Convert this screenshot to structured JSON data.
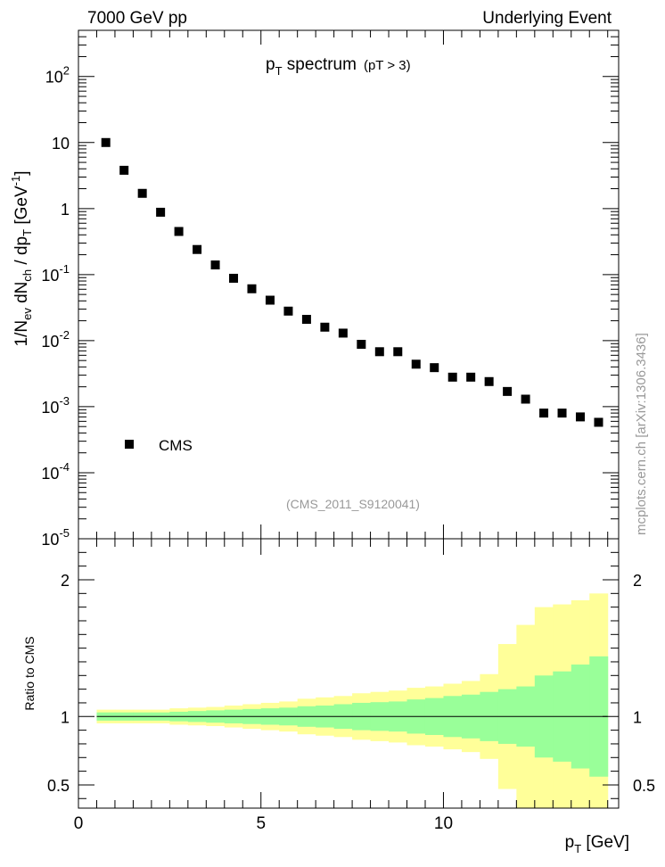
{
  "header": {
    "left": "7000 GeV pp",
    "right": "Underlying Event"
  },
  "side_label": "mcplots.cern.ch [arXiv:1306.3436]",
  "colors": {
    "band_outer": "#ffff99",
    "band_inner": "#99ff99",
    "marker": "#000000",
    "watermark": "#999999"
  },
  "chart_data": [
    {
      "type": "scatter",
      "title_main": "p",
      "title_sub": "T",
      "title_rest": " spectrum",
      "title_cut": "(pT > 3)",
      "ylabel": {
        "a": "1/N",
        "a_sub": "ev",
        "b": " dN",
        "b_sub": "ch",
        "c": " / dp",
        "c_sub": "T",
        "d": " [GeV",
        "d_sup": "-1",
        "e": "]"
      },
      "yscale": "log",
      "ylim": [
        1e-05,
        500
      ],
      "xlim": [
        0,
        14.8
      ],
      "y_ticks": [
        {
          "v": 100,
          "base": "10",
          "exp": "2"
        },
        {
          "v": 10,
          "base": "10",
          "exp": ""
        },
        {
          "v": 1,
          "base": "1",
          "exp": ""
        },
        {
          "v": 0.1,
          "base": "10",
          "exp": "-1"
        },
        {
          "v": 0.01,
          "base": "10",
          "exp": "-2"
        },
        {
          "v": 0.001,
          "base": "10",
          "exp": "-3"
        },
        {
          "v": 0.0001,
          "base": "10",
          "exp": "-4"
        },
        {
          "v": 1e-05,
          "base": "10",
          "exp": "-5"
        }
      ],
      "legend": "CMS",
      "watermark": "(CMS_2011_S9120041)",
      "series": [
        {
          "name": "CMS",
          "x": [
            0.75,
            1.25,
            1.75,
            2.25,
            2.75,
            3.25,
            3.75,
            4.25,
            4.75,
            5.25,
            5.75,
            6.25,
            6.75,
            7.25,
            7.75,
            8.25,
            8.75,
            9.25,
            9.75,
            10.25,
            10.75,
            11.25,
            11.75,
            12.25,
            12.75,
            13.25,
            13.75,
            14.25
          ],
          "y": [
            10,
            3.8,
            1.7,
            0.88,
            0.45,
            0.24,
            0.14,
            0.088,
            0.061,
            0.041,
            0.028,
            0.021,
            0.016,
            0.013,
            0.0088,
            0.0068,
            0.0068,
            0.0044,
            0.0039,
            0.0028,
            0.0028,
            0.0024,
            0.0017,
            0.0013,
            0.0008,
            0.0008,
            0.0007,
            0.00058
          ]
        }
      ]
    },
    {
      "type": "area",
      "ylabel": "Ratio to CMS",
      "xlabel": "p",
      "xlabel_sub": "T",
      "xlabel_unit": " [GeV]",
      "xlim": [
        0,
        14.8
      ],
      "ylim": [
        0.33,
        2.3
      ],
      "x_ticks": [
        {
          "v": 0,
          "label": "0"
        },
        {
          "v": 5,
          "label": "5"
        },
        {
          "v": 10,
          "label": "10"
        }
      ],
      "y_ticks": [
        {
          "v": 0.5,
          "label": "0.5"
        },
        {
          "v": 1,
          "label": "1"
        },
        {
          "v": 2,
          "label": "2"
        }
      ],
      "bins": [
        {
          "lo": 0.5,
          "hi": 1.0,
          "out_lo": 0.95,
          "out_hi": 1.05,
          "in_lo": 0.97,
          "in_hi": 1.03
        },
        {
          "lo": 1.0,
          "hi": 1.5,
          "out_lo": 0.95,
          "out_hi": 1.05,
          "in_lo": 0.97,
          "in_hi": 1.03
        },
        {
          "lo": 1.5,
          "hi": 2.0,
          "out_lo": 0.95,
          "out_hi": 1.05,
          "in_lo": 0.97,
          "in_hi": 1.03
        },
        {
          "lo": 2.0,
          "hi": 2.5,
          "out_lo": 0.95,
          "out_hi": 1.05,
          "in_lo": 0.97,
          "in_hi": 1.03
        },
        {
          "lo": 2.5,
          "hi": 3.0,
          "out_lo": 0.94,
          "out_hi": 1.06,
          "in_lo": 0.965,
          "in_hi": 1.035
        },
        {
          "lo": 3.0,
          "hi": 3.5,
          "out_lo": 0.935,
          "out_hi": 1.065,
          "in_lo": 0.96,
          "in_hi": 1.04
        },
        {
          "lo": 3.5,
          "hi": 4.0,
          "out_lo": 0.93,
          "out_hi": 1.07,
          "in_lo": 0.955,
          "in_hi": 1.045
        },
        {
          "lo": 4.0,
          "hi": 4.5,
          "out_lo": 0.92,
          "out_hi": 1.08,
          "in_lo": 0.95,
          "in_hi": 1.05
        },
        {
          "lo": 4.5,
          "hi": 5.0,
          "out_lo": 0.91,
          "out_hi": 1.09,
          "in_lo": 0.945,
          "in_hi": 1.055
        },
        {
          "lo": 5.0,
          "hi": 5.5,
          "out_lo": 0.9,
          "out_hi": 1.1,
          "in_lo": 0.94,
          "in_hi": 1.06
        },
        {
          "lo": 5.5,
          "hi": 6.0,
          "out_lo": 0.89,
          "out_hi": 1.11,
          "in_lo": 0.935,
          "in_hi": 1.065
        },
        {
          "lo": 6.0,
          "hi": 6.5,
          "out_lo": 0.87,
          "out_hi": 1.13,
          "in_lo": 0.925,
          "in_hi": 1.075
        },
        {
          "lo": 6.5,
          "hi": 7.0,
          "out_lo": 0.86,
          "out_hi": 1.14,
          "in_lo": 0.92,
          "in_hi": 1.08
        },
        {
          "lo": 7.0,
          "hi": 7.5,
          "out_lo": 0.85,
          "out_hi": 1.15,
          "in_lo": 0.91,
          "in_hi": 1.09
        },
        {
          "lo": 7.5,
          "hi": 8.0,
          "out_lo": 0.83,
          "out_hi": 1.17,
          "in_lo": 0.9,
          "in_hi": 1.1
        },
        {
          "lo": 8.0,
          "hi": 8.5,
          "out_lo": 0.82,
          "out_hi": 1.18,
          "in_lo": 0.895,
          "in_hi": 1.105
        },
        {
          "lo": 8.5,
          "hi": 9.0,
          "out_lo": 0.81,
          "out_hi": 1.19,
          "in_lo": 0.89,
          "in_hi": 1.11
        },
        {
          "lo": 9.0,
          "hi": 9.5,
          "out_lo": 0.79,
          "out_hi": 1.21,
          "in_lo": 0.875,
          "in_hi": 1.125
        },
        {
          "lo": 9.5,
          "hi": 10.0,
          "out_lo": 0.78,
          "out_hi": 1.22,
          "in_lo": 0.865,
          "in_hi": 1.135
        },
        {
          "lo": 10.0,
          "hi": 10.5,
          "out_lo": 0.76,
          "out_hi": 1.24,
          "in_lo": 0.85,
          "in_hi": 1.15
        },
        {
          "lo": 10.5,
          "hi": 11.0,
          "out_lo": 0.74,
          "out_hi": 1.26,
          "in_lo": 0.84,
          "in_hi": 1.16
        },
        {
          "lo": 11.0,
          "hi": 11.5,
          "out_lo": 0.69,
          "out_hi": 1.31,
          "in_lo": 0.82,
          "in_hi": 1.18
        },
        {
          "lo": 11.5,
          "hi": 12.0,
          "out_lo": 0.47,
          "out_hi": 1.53,
          "in_lo": 0.8,
          "in_hi": 1.2
        },
        {
          "lo": 12.0,
          "hi": 12.5,
          "out_lo": 0.33,
          "out_hi": 1.67,
          "in_lo": 0.78,
          "in_hi": 1.22
        },
        {
          "lo": 12.5,
          "hi": 13.0,
          "out_lo": 0.33,
          "out_hi": 1.8,
          "in_lo": 0.7,
          "in_hi": 1.3
        },
        {
          "lo": 13.0,
          "hi": 13.5,
          "out_lo": 0.33,
          "out_hi": 1.82,
          "in_lo": 0.67,
          "in_hi": 1.33
        },
        {
          "lo": 13.5,
          "hi": 14.0,
          "out_lo": 0.33,
          "out_hi": 1.85,
          "in_lo": 0.62,
          "in_hi": 1.38
        },
        {
          "lo": 14.0,
          "hi": 14.5,
          "out_lo": 0.33,
          "out_hi": 1.9,
          "in_lo": 0.56,
          "in_hi": 1.44
        }
      ],
      "reference_line": 1
    }
  ]
}
